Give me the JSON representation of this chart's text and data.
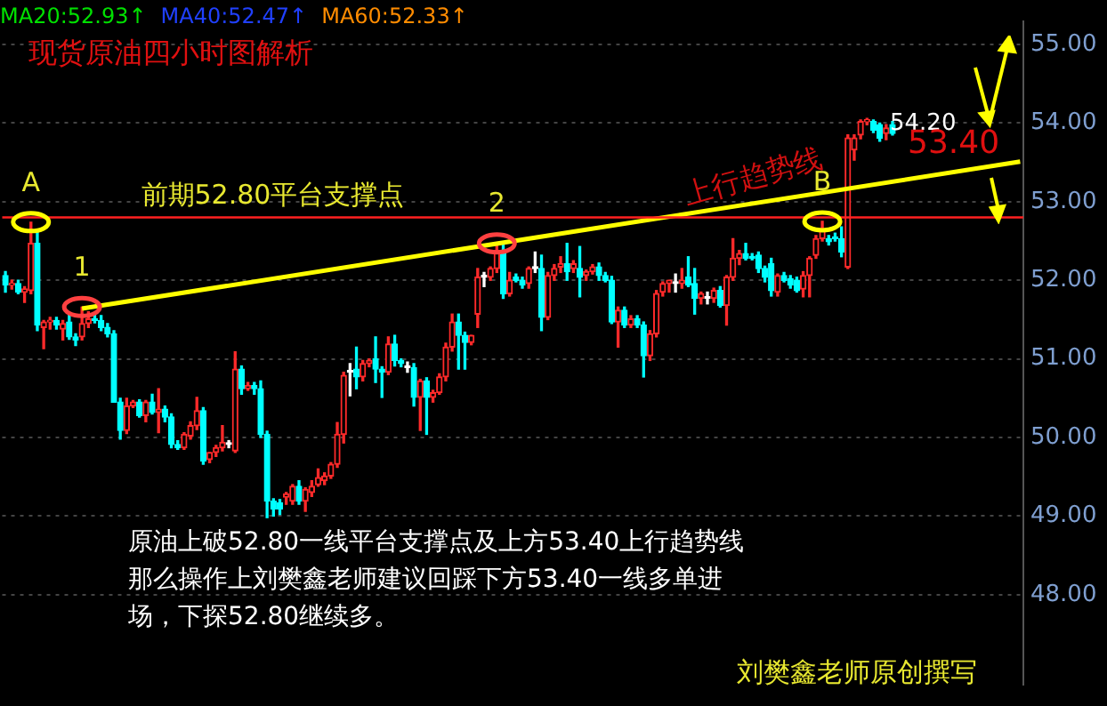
{
  "chart_data": {
    "type": "candlestick",
    "title": "现货原油四小时图解析",
    "annotations": [
      "MA20:52.93↑",
      "MA40:52.47↑",
      "MA60:52.33↑",
      {
        "text": "A",
        "y": 52.74
      },
      {
        "text": "1",
        "y": 51.66
      },
      {
        "text": "2",
        "y": 52.47
      },
      {
        "text": "B",
        "y": 52.75
      },
      "54.20",
      "53.40",
      "原油上破52.80一线平台支撑点及上方53.40上行趋势线",
      "那么操作上刘樊鑫老师建议回踩下方53.40一线多单进",
      "场，下探52.80继续多。",
      "刘樊鑫老师原创撰写"
    ],
    "categories": [
      null,
      null,
      null,
      null,
      null,
      null,
      null,
      null,
      null,
      null,
      null,
      null,
      null,
      null,
      null,
      null,
      null,
      null,
      null,
      null,
      null,
      null,
      null,
      null,
      null,
      null,
      null,
      null,
      null,
      null,
      null,
      null,
      null,
      null,
      null,
      null,
      null,
      null,
      null,
      null,
      null,
      null,
      null,
      null,
      null,
      null,
      null,
      null,
      null,
      null,
      null,
      null,
      null,
      null,
      null,
      null,
      null,
      null,
      null,
      null,
      null,
      null,
      null,
      null,
      null,
      null,
      null,
      null,
      null,
      null,
      null,
      null,
      null,
      null,
      null,
      null,
      null,
      null,
      null,
      null,
      null,
      null,
      null,
      null,
      null,
      null,
      null,
      null,
      null,
      null,
      null,
      null,
      null,
      null,
      null,
      null,
      null,
      null,
      null,
      null,
      null,
      null,
      null,
      null,
      null,
      null,
      null,
      null,
      null,
      null,
      null,
      null,
      null,
      null,
      null,
      null,
      null,
      null,
      null,
      null,
      null,
      null,
      null,
      null,
      null,
      null,
      null,
      null,
      null,
      null,
      null,
      null,
      null,
      null,
      null,
      null,
      null,
      null,
      null,
      null,
      null,
      null,
      null,
      null,
      null,
      null,
      null,
      null,
      null,
      null,
      null,
      null,
      null,
      null,
      null,
      null,
      null,
      null,
      null,
      null
    ],
    "ohlc": [
      [
        52.06,
        52.11,
        51.85,
        51.94
      ],
      [
        51.94,
        52.0,
        51.89,
        51.96
      ],
      [
        51.96,
        52.0,
        51.83,
        51.85
      ],
      [
        51.85,
        51.92,
        51.72,
        51.89
      ],
      [
        51.87,
        52.74,
        51.83,
        52.47
      ],
      [
        52.47,
        52.62,
        51.36,
        51.43
      ],
      [
        51.4,
        51.49,
        51.13,
        51.47
      ],
      [
        51.47,
        51.53,
        51.38,
        51.49
      ],
      [
        51.49,
        51.53,
        51.38,
        51.43
      ],
      [
        51.38,
        51.49,
        51.24,
        51.45
      ],
      [
        51.47,
        51.57,
        51.25,
        51.28
      ],
      [
        51.28,
        51.32,
        51.17,
        51.24
      ],
      [
        51.28,
        51.66,
        51.24,
        51.45
      ],
      [
        51.45,
        51.6,
        51.4,
        51.51
      ],
      [
        51.51,
        51.56,
        51.46,
        51.49
      ],
      [
        51.49,
        51.55,
        51.36,
        51.4
      ],
      [
        51.4,
        51.45,
        51.28,
        51.32
      ],
      [
        51.32,
        51.36,
        50.45,
        50.45
      ],
      [
        50.45,
        50.5,
        49.98,
        50.09
      ],
      [
        50.09,
        50.5,
        50.05,
        50.4
      ],
      [
        50.4,
        50.47,
        50.38,
        50.45
      ],
      [
        50.45,
        50.48,
        50.26,
        50.28
      ],
      [
        50.28,
        50.47,
        50.2,
        50.45
      ],
      [
        50.45,
        50.55,
        50.3,
        50.32
      ],
      [
        50.32,
        50.62,
        50.06,
        50.36
      ],
      [
        50.36,
        50.4,
        50.2,
        50.26
      ],
      [
        50.26,
        50.3,
        49.87,
        49.91
      ],
      [
        49.91,
        49.96,
        49.85,
        49.87
      ],
      [
        49.87,
        50.06,
        49.85,
        50.04
      ],
      [
        50.02,
        50.2,
        49.98,
        50.15
      ],
      [
        50.15,
        50.51,
        50.1,
        50.34
      ],
      [
        50.34,
        50.38,
        49.66,
        49.7
      ],
      [
        49.72,
        49.81,
        49.68,
        49.81
      ],
      [
        49.81,
        49.9,
        49.76,
        49.87
      ],
      [
        49.87,
        50.15,
        49.83,
        49.94
      ],
      [
        49.91,
        49.96,
        49.87,
        49.91
      ],
      [
        49.83,
        51.09,
        49.81,
        50.87
      ],
      [
        50.87,
        50.91,
        50.55,
        50.62
      ],
      [
        50.62,
        50.7,
        50.6,
        50.66
      ],
      [
        50.66,
        50.7,
        50.55,
        50.62
      ],
      [
        50.62,
        50.72,
        50.0,
        50.04
      ],
      [
        50.04,
        50.08,
        48.98,
        49.19
      ],
      [
        49.19,
        49.22,
        49.0,
        49.09
      ],
      [
        49.17,
        49.21,
        49.02,
        49.09
      ],
      [
        49.24,
        49.3,
        49.15,
        49.28
      ],
      [
        49.19,
        49.4,
        49.15,
        49.38
      ],
      [
        49.38,
        49.45,
        49.15,
        49.19
      ],
      [
        49.19,
        49.36,
        49.06,
        49.34
      ],
      [
        49.3,
        49.45,
        49.25,
        49.38
      ],
      [
        49.4,
        49.6,
        49.38,
        49.49
      ],
      [
        49.45,
        49.55,
        49.4,
        49.51
      ],
      [
        49.51,
        49.68,
        49.48,
        49.66
      ],
      [
        49.66,
        50.19,
        49.62,
        50.04
      ],
      [
        50.04,
        50.83,
        49.93,
        50.79
      ],
      [
        50.83,
        50.94,
        50.53,
        50.83
      ],
      [
        50.87,
        51.15,
        50.62,
        50.77
      ],
      [
        50.77,
        50.98,
        50.72,
        50.94
      ],
      [
        50.94,
        51.0,
        50.9,
        50.98
      ],
      [
        51.0,
        51.28,
        50.7,
        50.87
      ],
      [
        50.87,
        50.9,
        50.51,
        50.83
      ],
      [
        50.83,
        51.28,
        50.8,
        51.19
      ],
      [
        51.19,
        51.3,
        50.91,
        50.98
      ],
      [
        50.98,
        51.0,
        50.9,
        50.94
      ],
      [
        50.89,
        50.96,
        50.83,
        50.89
      ],
      [
        50.89,
        50.94,
        50.4,
        50.51
      ],
      [
        50.51,
        50.74,
        50.09,
        50.72
      ],
      [
        50.72,
        50.76,
        50.04,
        50.51
      ],
      [
        50.51,
        50.6,
        50.45,
        50.57
      ],
      [
        50.57,
        50.81,
        50.55,
        50.77
      ],
      [
        50.77,
        51.2,
        50.72,
        51.15
      ],
      [
        51.15,
        51.57,
        51.1,
        51.47
      ],
      [
        51.47,
        51.57,
        50.87,
        51.3
      ],
      [
        51.3,
        51.34,
        50.87,
        51.21
      ],
      [
        51.21,
        51.3,
        51.18,
        51.3
      ],
      [
        51.57,
        52.15,
        51.4,
        52.04
      ],
      [
        52.04,
        52.1,
        51.92,
        52.04
      ],
      [
        52.04,
        52.17,
        52.0,
        52.15
      ],
      [
        52.15,
        52.47,
        52.1,
        52.38
      ],
      [
        52.36,
        52.47,
        51.77,
        51.83
      ],
      [
        51.83,
        52.1,
        51.8,
        52.0
      ],
      [
        52.04,
        52.08,
        51.98,
        52.0
      ],
      [
        52.0,
        52.04,
        51.9,
        51.94
      ],
      [
        51.96,
        52.17,
        51.9,
        52.15
      ],
      [
        52.15,
        52.36,
        52.1,
        52.15
      ],
      [
        52.15,
        52.32,
        51.36,
        51.53
      ],
      [
        51.53,
        52.1,
        51.5,
        52.06
      ],
      [
        52.06,
        52.2,
        52.0,
        52.15
      ],
      [
        52.17,
        52.3,
        52.1,
        52.21
      ],
      [
        52.21,
        52.47,
        52.0,
        52.11
      ],
      [
        52.15,
        52.25,
        52.1,
        52.21
      ],
      [
        52.15,
        52.43,
        51.79,
        52.04
      ],
      [
        52.06,
        52.13,
        52.0,
        52.11
      ],
      [
        52.11,
        52.2,
        52.08,
        52.17
      ],
      [
        52.17,
        52.22,
        52.0,
        52.06
      ],
      [
        52.06,
        52.1,
        51.98,
        52.0
      ],
      [
        52.0,
        52.05,
        51.45,
        51.47
      ],
      [
        51.47,
        51.66,
        51.15,
        51.62
      ],
      [
        51.62,
        51.66,
        51.4,
        51.43
      ],
      [
        51.43,
        51.55,
        51.4,
        51.51
      ],
      [
        51.51,
        51.55,
        51.4,
        51.43
      ],
      [
        51.43,
        51.47,
        50.77,
        51.04
      ],
      [
        51.04,
        51.36,
        50.98,
        51.32
      ],
      [
        51.32,
        51.87,
        51.28,
        51.83
      ],
      [
        51.85,
        51.98,
        51.8,
        51.96
      ],
      [
        51.96,
        52.0,
        51.85,
        52.0
      ],
      [
        51.96,
        52.08,
        51.85,
        51.96
      ],
      [
        51.96,
        52.15,
        51.9,
        52.0
      ],
      [
        52.04,
        52.3,
        51.92,
        51.94
      ],
      [
        51.96,
        52.15,
        51.57,
        51.77
      ],
      [
        51.77,
        51.85,
        51.7,
        51.83
      ],
      [
        51.77,
        51.85,
        51.7,
        51.77
      ],
      [
        51.77,
        51.9,
        51.72,
        51.87
      ],
      [
        51.87,
        51.92,
        51.66,
        51.68
      ],
      [
        51.68,
        52.06,
        51.43,
        52.04
      ],
      [
        52.04,
        52.53,
        52.0,
        52.28
      ],
      [
        52.28,
        52.38,
        52.2,
        52.34
      ],
      [
        52.34,
        52.47,
        52.26,
        52.28
      ],
      [
        52.3,
        52.34,
        52.26,
        52.28
      ],
      [
        52.32,
        52.36,
        52.1,
        52.15
      ],
      [
        52.15,
        52.18,
        51.98,
        52.04
      ],
      [
        52.21,
        52.28,
        51.8,
        51.87
      ],
      [
        51.85,
        52.08,
        51.8,
        52.06
      ],
      [
        52.06,
        52.1,
        51.98,
        52.0
      ],
      [
        52.02,
        52.06,
        51.9,
        51.94
      ],
      [
        52.0,
        52.04,
        51.85,
        51.87
      ],
      [
        51.89,
        52.11,
        51.79,
        52.06
      ],
      [
        52.06,
        52.3,
        51.79,
        52.28
      ],
      [
        52.32,
        52.57,
        52.28,
        52.53
      ],
      [
        52.53,
        52.75,
        52.5,
        52.64
      ],
      [
        52.53,
        52.57,
        52.45,
        52.49
      ],
      [
        52.55,
        52.6,
        52.5,
        52.53
      ],
      [
        52.53,
        52.68,
        52.3,
        52.36
      ],
      [
        52.17,
        53.85,
        52.15,
        53.81
      ],
      [
        53.66,
        53.85,
        53.53,
        53.81
      ],
      [
        53.85,
        54.04,
        53.8,
        54.02
      ],
      [
        54.02,
        54.06,
        53.98,
        54.04
      ],
      [
        54.02,
        54.04,
        53.88,
        53.91
      ],
      [
        53.98,
        54.0,
        53.77,
        53.81
      ],
      [
        53.87,
        53.98,
        53.79,
        53.94
      ],
      [
        53.98,
        54.02,
        53.85,
        53.87
      ],
      null,
      null,
      null,
      null,
      null,
      null,
      null,
      null,
      null,
      null,
      null,
      null,
      null,
      null,
      null,
      null,
      null,
      null,
      null,
      null
    ],
    "colors": [
      "#00ffff",
      "#ff2a2a",
      "#00ffff",
      "#ff2a2a",
      "#ff2a2a",
      "#00ffff",
      "#ff2a2a",
      "#ff2a2a",
      "#00ffff",
      "#ff2a2a",
      "#00ffff",
      "#00ffff",
      "#ff2a2a",
      "#ff2a2a",
      "#00ffff",
      "#00ffff",
      "#00ffff",
      "#00ffff",
      "#00ffff",
      "#ff2a2a",
      "#ff2a2a",
      "#00ffff",
      "#ff2a2a",
      "#00ffff",
      "#ff2a2a",
      "#00ffff",
      "#00ffff",
      "#00ffff",
      "#ff2a2a",
      "#ff2a2a",
      "#ff2a2a",
      "#00ffff",
      "#ff2a2a",
      "#ff2a2a",
      "#ff2a2a",
      "#ffffff",
      "#ff2a2a",
      "#00ffff",
      "#ff2a2a",
      "#00ffff",
      "#00ffff",
      "#00ffff",
      "#00ffff",
      "#00ffff",
      "#ff2a2a",
      "#ff2a2a",
      "#00ffff",
      "#ff2a2a",
      "#ff2a2a",
      "#ff2a2a",
      "#ff2a2a",
      "#ff2a2a",
      "#ff2a2a",
      "#ff2a2a",
      "#ffffff",
      "#00ffff",
      "#ff2a2a",
      "#ff2a2a",
      "#00ffff",
      "#00ffff",
      "#ff2a2a",
      "#00ffff",
      "#00ffff",
      "#ffffff",
      "#00ffff",
      "#ff2a2a",
      "#00ffff",
      "#ff2a2a",
      "#ff2a2a",
      "#ff2a2a",
      "#ff2a2a",
      "#00ffff",
      "#00ffff",
      "#ff2a2a",
      "#ff2a2a",
      "#ffffff",
      "#ff2a2a",
      "#ff2a2a",
      "#00ffff",
      "#ff2a2a",
      "#00ffff",
      "#00ffff",
      "#ff2a2a",
      "#ffffff",
      "#00ffff",
      "#ff2a2a",
      "#ff2a2a",
      "#ff2a2a",
      "#00ffff",
      "#ff2a2a",
      "#00ffff",
      "#ff2a2a",
      "#ff2a2a",
      "#00ffff",
      "#00ffff",
      "#00ffff",
      "#ff2a2a",
      "#00ffff",
      "#ff2a2a",
      "#00ffff",
      "#00ffff",
      "#ff2a2a",
      "#ff2a2a",
      "#ff2a2a",
      "#ff2a2a",
      "#ffffff",
      "#ff2a2a",
      "#00ffff",
      "#00ffff",
      "#ff2a2a",
      "#ffffff",
      "#ff2a2a",
      "#00ffff",
      "#ff2a2a",
      "#ff2a2a",
      "#ff2a2a",
      "#00ffff",
      "#00ffff",
      "#00ffff",
      "#00ffff",
      "#00ffff",
      "#ff2a2a",
      "#00ffff",
      "#00ffff",
      "#00ffff",
      "#ff2a2a",
      "#ff2a2a",
      "#ff2a2a",
      "#ff2a2a",
      "#00ffff",
      "#00ffff",
      "#00ffff",
      "#ff2a2a",
      "#ff2a2a",
      "#ff2a2a",
      "#ff2a2a",
      "#00ffff",
      "#00ffff",
      "#ff2a2a",
      "#00ffff",
      null,
      null,
      null,
      null,
      null,
      null,
      null,
      null,
      null,
      null,
      null,
      null,
      null,
      null,
      null,
      null,
      null,
      null,
      null,
      null
    ],
    "series": [
      {
        "type": "line",
        "name": "上行趋势线",
        "color": "#ffff00",
        "values": [
          null,
          null,
          null,
          null,
          null,
          null,
          null,
          null,
          null,
          null,
          null,
          null,
          51.64,
          null,
          null,
          null,
          null,
          null,
          null,
          null,
          null,
          null,
          null,
          null,
          null,
          null,
          null,
          null,
          null,
          null,
          null,
          null,
          null,
          null,
          null,
          null,
          null,
          null,
          null,
          null,
          null,
          null,
          null,
          null,
          null,
          null,
          null,
          null,
          null,
          null,
          null,
          null,
          null,
          null,
          null,
          null,
          null,
          null,
          null,
          null,
          null,
          null,
          null,
          null,
          null,
          null,
          null,
          null,
          null,
          null,
          null,
          null,
          null,
          null,
          null,
          null,
          null,
          null,
          null,
          null,
          null,
          null,
          null,
          null,
          null,
          null,
          null,
          null,
          null,
          null,
          null,
          null,
          null,
          null,
          null,
          null,
          null,
          null,
          null,
          null,
          null,
          null,
          null,
          null,
          null,
          null,
          null,
          null,
          null,
          null,
          null,
          null,
          null,
          null,
          null,
          null,
          null,
          null,
          null,
          null,
          null,
          null,
          null,
          null,
          null,
          null,
          null,
          null,
          null,
          null,
          null,
          null,
          null,
          null,
          null,
          null,
          null,
          null,
          null,
          null,
          null,
          null,
          null,
          null,
          null,
          null,
          null,
          null,
          null,
          null,
          null,
          null,
          null,
          null,
          null,
          null,
          null,
          null,
          null,
          53.51
        ]
      }
    ],
    "ref_lines": [
      {
        "axis": "y",
        "value": 52.8,
        "label": "前期52.80平台支撑点",
        "color": "#ff2020"
      }
    ],
    "ylim": [
      46.85,
      55.3
    ],
    "yticks": [
      {
        "value": 48,
        "label": "48.00"
      },
      {
        "value": 49,
        "label": "49.00"
      },
      {
        "value": 50,
        "label": "50.00"
      },
      {
        "value": 51,
        "label": "51.00"
      },
      {
        "value": 52,
        "label": "52.00"
      },
      {
        "value": 53,
        "label": "53.00"
      },
      {
        "value": 54,
        "label": "54.00"
      },
      {
        "value": 55,
        "label": "55.00"
      }
    ],
    "grid": "y",
    "legend": false,
    "tick_labels": "y"
  }
}
